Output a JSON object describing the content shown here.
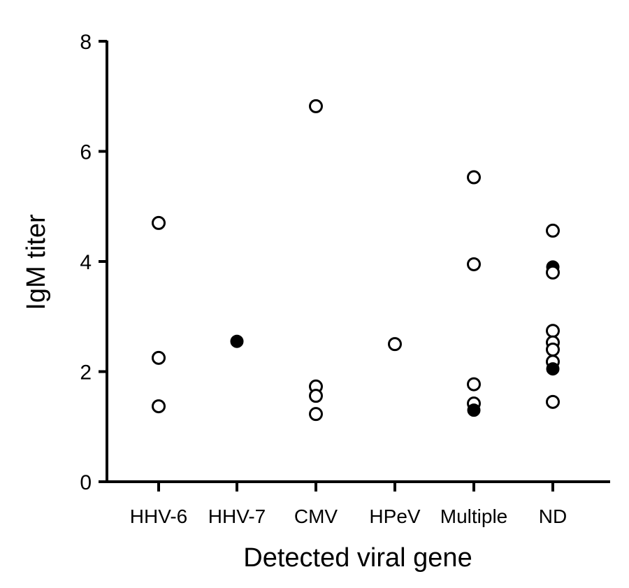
{
  "chart_data": {
    "type": "scatter",
    "title": "",
    "xlabel": "Detected viral gene",
    "ylabel": "IgM titer",
    "ylim": [
      0,
      8
    ],
    "yticks": [
      0,
      2,
      4,
      6,
      8
    ],
    "grid": false,
    "categories": [
      "HHV-6",
      "HHV-7",
      "CMV",
      "HPeV",
      "Multiple",
      "ND"
    ],
    "points": [
      {
        "category": "HHV-6",
        "y": 4.7,
        "filled": false
      },
      {
        "category": "HHV-6",
        "y": 2.25,
        "filled": false
      },
      {
        "category": "HHV-6",
        "y": 1.37,
        "filled": false
      },
      {
        "category": "HHV-7",
        "y": 2.55,
        "filled": true
      },
      {
        "category": "CMV",
        "y": 6.82,
        "filled": false
      },
      {
        "category": "CMV",
        "y": 1.73,
        "filled": false
      },
      {
        "category": "CMV",
        "y": 1.56,
        "filled": false
      },
      {
        "category": "CMV",
        "y": 1.23,
        "filled": false
      },
      {
        "category": "HPeV",
        "y": 2.5,
        "filled": false
      },
      {
        "category": "Multiple",
        "y": 5.53,
        "filled": false
      },
      {
        "category": "Multiple",
        "y": 3.95,
        "filled": false
      },
      {
        "category": "Multiple",
        "y": 1.77,
        "filled": false
      },
      {
        "category": "Multiple",
        "y": 1.42,
        "filled": false
      },
      {
        "category": "Multiple",
        "y": 1.3,
        "filled": true
      },
      {
        "category": "ND",
        "y": 4.56,
        "filled": false
      },
      {
        "category": "ND",
        "y": 3.9,
        "filled": true
      },
      {
        "category": "ND",
        "y": 3.8,
        "filled": false
      },
      {
        "category": "ND",
        "y": 2.74,
        "filled": false
      },
      {
        "category": "ND",
        "y": 2.53,
        "filled": false
      },
      {
        "category": "ND",
        "y": 2.4,
        "filled": false
      },
      {
        "category": "ND",
        "y": 2.18,
        "filled": false
      },
      {
        "category": "ND",
        "y": 2.05,
        "filled": true
      },
      {
        "category": "ND",
        "y": 1.45,
        "filled": false
      }
    ]
  }
}
